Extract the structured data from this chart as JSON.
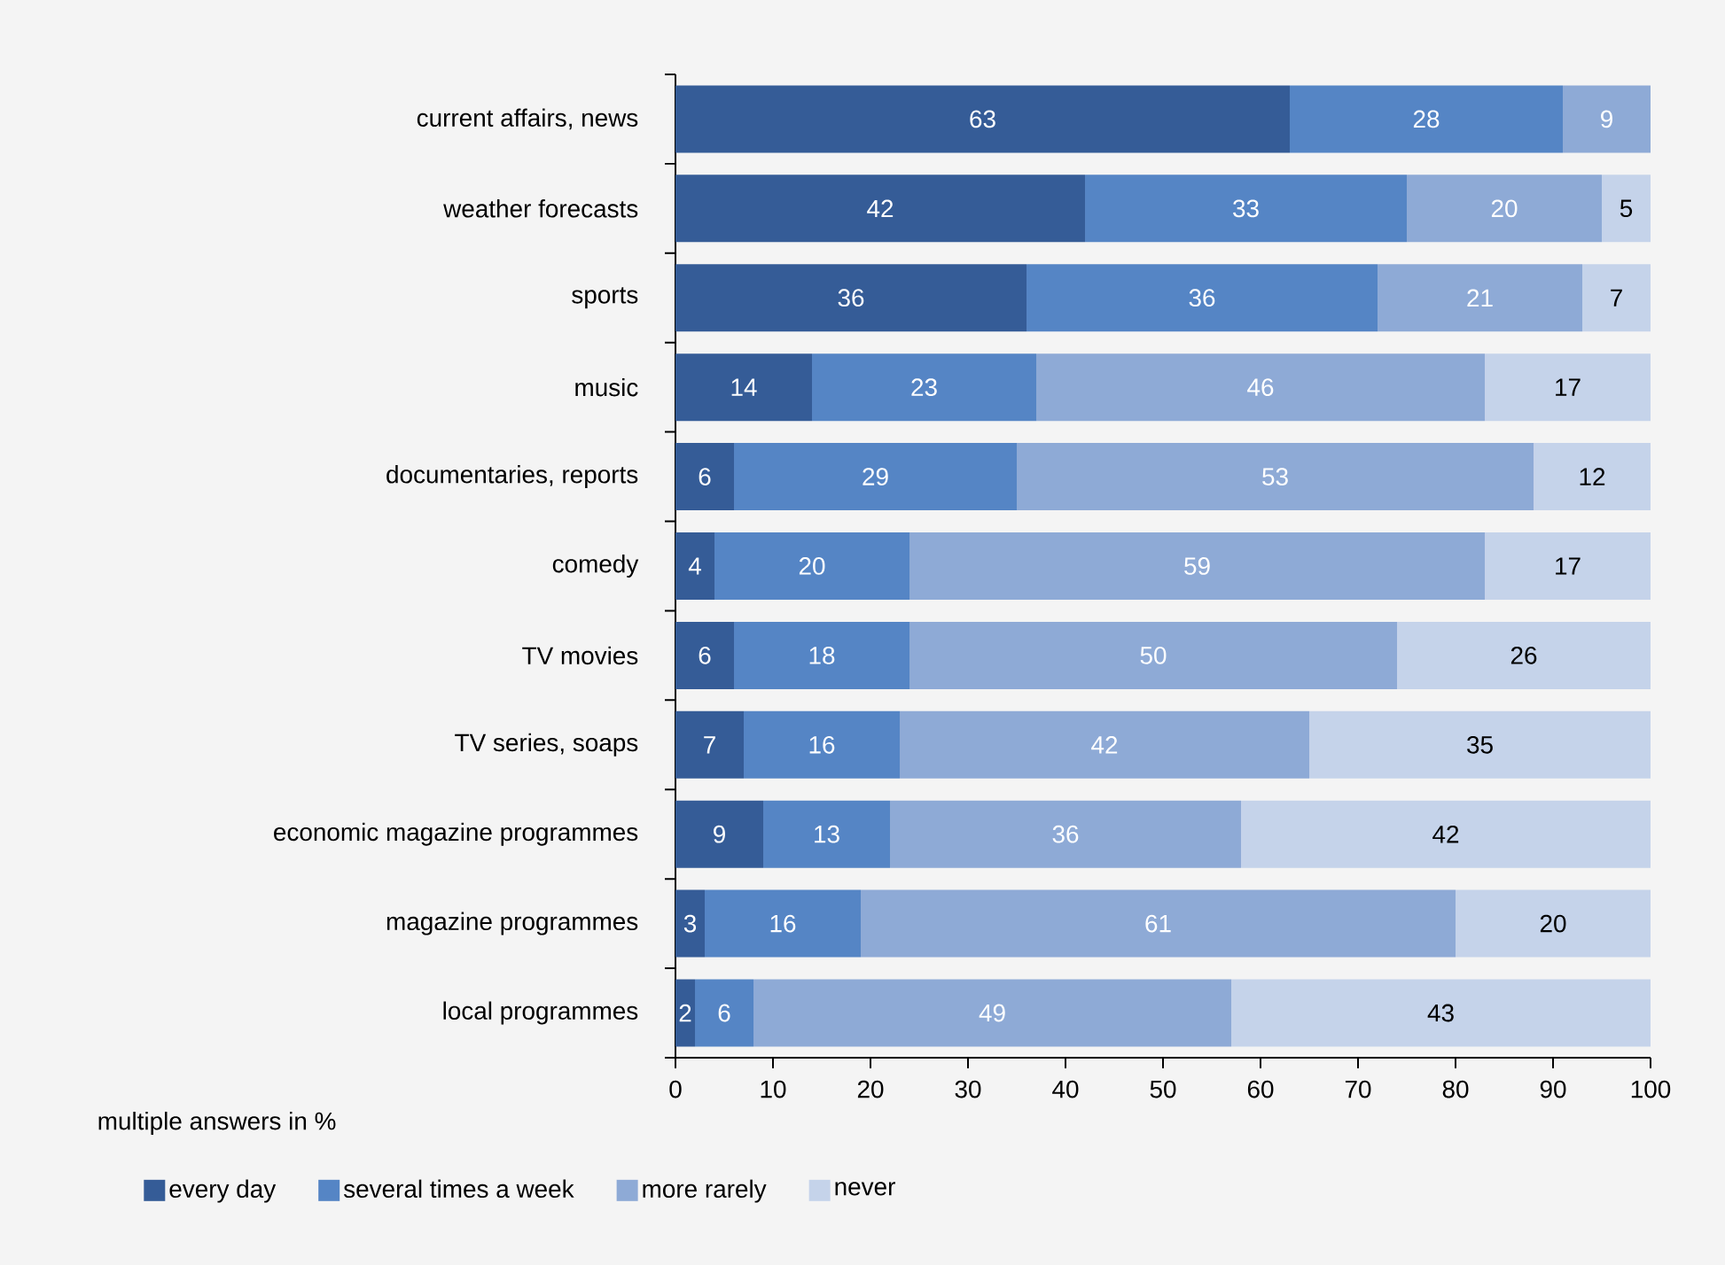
{
  "chart_data": {
    "type": "bar",
    "orientation": "horizontal",
    "stacked": true,
    "data_labels": true,
    "legend": "bottom",
    "grid": false,
    "annotations": [
      "multiple answers in %"
    ],
    "categories": [
      "current affairs, news",
      "weather forecasts",
      "sports",
      "music",
      "documentaries, reports",
      "comedy",
      "TV movies",
      "TV series, soaps",
      "economic magazine programmes",
      "magazine programmes",
      "local programmes"
    ],
    "series": [
      {
        "name": "every day",
        "color": "#355c97",
        "values": [
          63,
          42,
          36,
          14,
          6,
          4,
          6,
          7,
          9,
          3,
          2
        ]
      },
      {
        "name": "several times a week",
        "color": "#5585c5",
        "values": [
          28,
          33,
          36,
          23,
          29,
          20,
          18,
          16,
          13,
          16,
          6
        ]
      },
      {
        "name": "more rarely",
        "color": "#8eaad6",
        "values": [
          9,
          20,
          21,
          46,
          53,
          59,
          50,
          42,
          36,
          61,
          49
        ]
      },
      {
        "name": "never",
        "color": "#c5d3ea",
        "values": [
          null,
          5,
          7,
          17,
          12,
          17,
          26,
          35,
          42,
          20,
          43
        ]
      }
    ],
    "xlim": [
      0,
      100
    ],
    "xticks": [
      0,
      10,
      20,
      30,
      40,
      50,
      60,
      70,
      80,
      90,
      100
    ]
  }
}
